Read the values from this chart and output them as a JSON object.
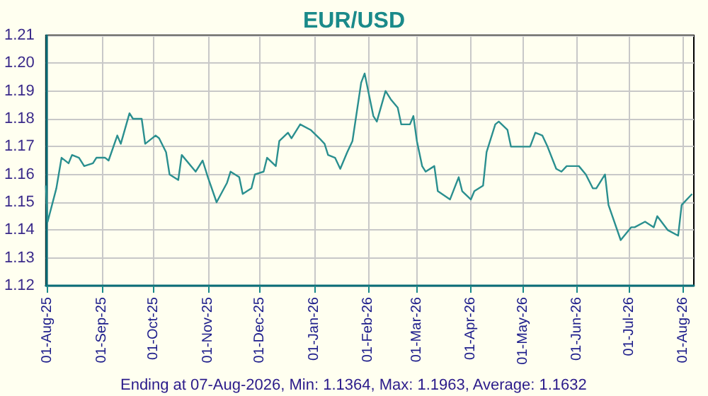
{
  "chart_data": {
    "type": "line",
    "title": "EUR/USD",
    "annotations": [
      "Ending at 07-Aug-2026, Min: 1.1364, Max: 1.1963, Average: 1.1632"
    ],
    "x": [
      "2025-07-31",
      "2025-08-01",
      "2025-08-06",
      "2025-08-09",
      "2025-08-13",
      "2025-08-15",
      "2025-08-19",
      "2025-08-22",
      "2025-08-27",
      "2025-08-29",
      "2025-09-03",
      "2025-09-05",
      "2025-09-10",
      "2025-09-12",
      "2025-09-17",
      "2025-09-19",
      "2025-09-24",
      "2025-09-26",
      "2025-10-02",
      "2025-10-04",
      "2025-10-08",
      "2025-10-10",
      "2025-10-15",
      "2025-10-17",
      "2025-10-25",
      "2025-10-29",
      "2025-11-01",
      "2025-11-06",
      "2025-11-12",
      "2025-11-14",
      "2025-11-19",
      "2025-11-21",
      "2025-11-26",
      "2025-11-28",
      "2025-12-03",
      "2025-12-05",
      "2025-12-10",
      "2025-12-12",
      "2025-12-17",
      "2025-12-19",
      "2025-12-24",
      "2025-12-30",
      "2026-01-04",
      "2026-01-07",
      "2026-01-09",
      "2026-01-13",
      "2026-01-16",
      "2026-01-20",
      "2026-01-23",
      "2026-01-28",
      "2026-01-30",
      "2026-02-04",
      "2026-02-06",
      "2026-02-11",
      "2026-02-14",
      "2026-02-18",
      "2026-02-20",
      "2026-02-25",
      "2026-02-27",
      "2026-03-01",
      "2026-03-04",
      "2026-03-06",
      "2026-03-11",
      "2026-03-13",
      "2026-03-20",
      "2026-03-25",
      "2026-03-27",
      "2026-04-01",
      "2026-04-03",
      "2026-04-08",
      "2026-04-10",
      "2026-04-15",
      "2026-04-17",
      "2026-04-22",
      "2026-04-24",
      "2026-04-29",
      "2026-05-05",
      "2026-05-08",
      "2026-05-12",
      "2026-05-15",
      "2026-05-20",
      "2026-05-23",
      "2026-05-26",
      "2026-05-29",
      "2026-06-02",
      "2026-06-06",
      "2026-06-10",
      "2026-06-12",
      "2026-06-17",
      "2026-06-19",
      "2026-06-26",
      "2026-07-02",
      "2026-07-04",
      "2026-07-10",
      "2026-07-15",
      "2026-07-17",
      "2026-07-23",
      "2026-07-29",
      "2026-07-31",
      "2026-08-06"
    ],
    "series": [
      {
        "color": "#2a8f8f",
        "values": [
          1.156,
          1.143,
          1.155,
          1.166,
          1.164,
          1.167,
          1.166,
          1.163,
          1.164,
          1.166,
          1.166,
          1.165,
          1.174,
          1.171,
          1.182,
          1.18,
          1.18,
          1.171,
          1.174,
          1.173,
          1.168,
          1.16,
          1.158,
          1.167,
          1.161,
          1.165,
          1.159,
          1.15,
          1.157,
          1.161,
          1.159,
          1.153,
          1.155,
          1.16,
          1.161,
          1.166,
          1.163,
          1.172,
          1.175,
          1.173,
          1.178,
          1.176,
          1.173,
          1.171,
          1.167,
          1.166,
          1.162,
          1.168,
          1.172,
          1.193,
          1.1963,
          1.181,
          1.179,
          1.19,
          1.187,
          1.184,
          1.178,
          1.178,
          1.181,
          1.172,
          1.163,
          1.161,
          1.163,
          1.154,
          1.151,
          1.159,
          1.154,
          1.151,
          1.154,
          1.156,
          1.168,
          1.178,
          1.179,
          1.176,
          1.17,
          1.17,
          1.17,
          1.175,
          1.174,
          1.17,
          1.162,
          1.161,
          1.163,
          1.163,
          1.163,
          1.16,
          1.155,
          1.155,
          1.16,
          1.149,
          1.1364,
          1.141,
          1.141,
          1.143,
          1.141,
          1.145,
          1.14,
          1.138,
          1.149,
          1.153
        ]
      }
    ],
    "xlim": [
      "2025-07-31",
      "2026-08-07"
    ],
    "xticks": [
      {
        "value": "2025-08-01",
        "label": "01-Aug-25"
      },
      {
        "value": "2025-09-01",
        "label": "01-Sep-25"
      },
      {
        "value": "2025-10-01",
        "label": "01-Oct-25"
      },
      {
        "value": "2025-11-01",
        "label": "01-Nov-25"
      },
      {
        "value": "2025-12-01",
        "label": "01-Dec-25"
      },
      {
        "value": "2026-01-01",
        "label": "01-Jan-26"
      },
      {
        "value": "2026-02-01",
        "label": "01-Feb-26"
      },
      {
        "value": "2026-03-01",
        "label": "01-Mar-26"
      },
      {
        "value": "2026-04-01",
        "label": "01-Apr-26"
      },
      {
        "value": "2026-05-01",
        "label": "01-May-26"
      },
      {
        "value": "2026-06-01",
        "label": "01-Jun-26"
      },
      {
        "value": "2026-07-01",
        "label": "01-Jul-26"
      },
      {
        "value": "2026-08-01",
        "label": "01-Aug-26"
      }
    ],
    "ylim": [
      1.12,
      1.21
    ],
    "yticks": [
      1.12,
      1.13,
      1.14,
      1.15,
      1.16,
      1.17,
      1.18,
      1.19,
      {
        "value": 1.2,
        "label": "1.20"
      },
      1.21
    ],
    "grid": true,
    "marker": "none",
    "line_style": "solid"
  }
}
